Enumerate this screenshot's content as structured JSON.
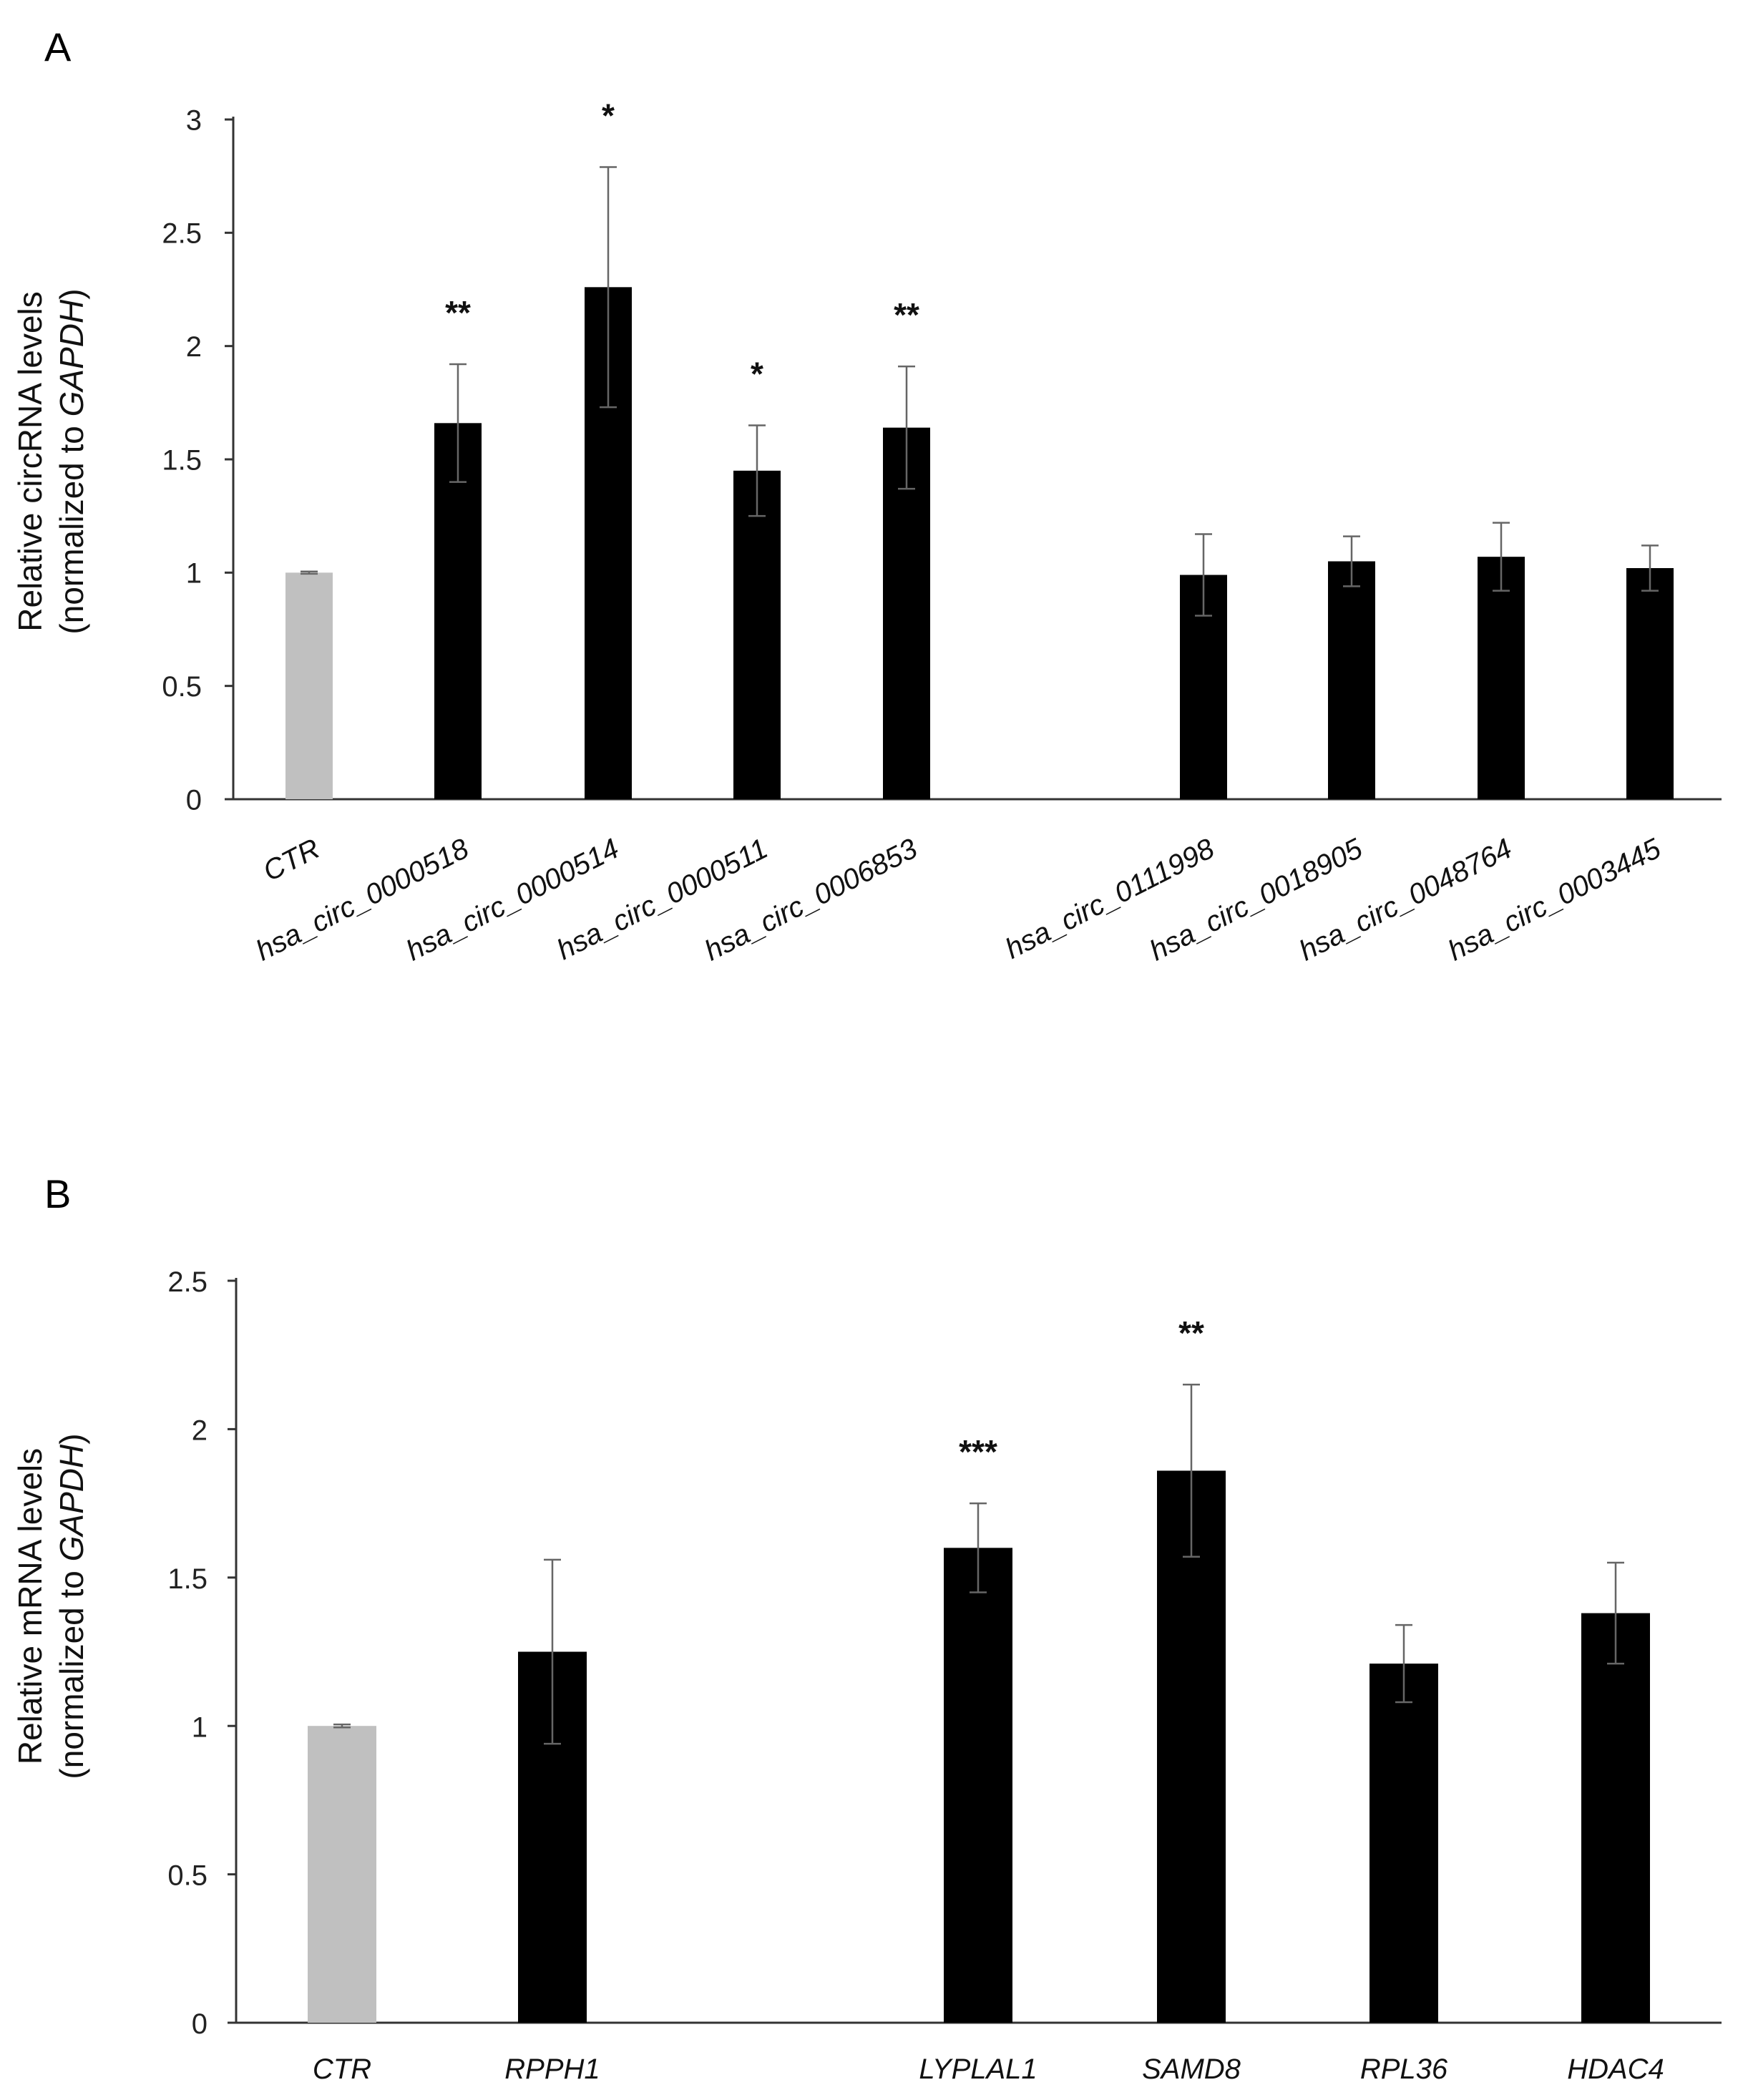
{
  "chart_data": [
    {
      "panel": "A",
      "type": "bar",
      "ylabel_line1": "Relative circRNA levels",
      "ylabel_line2_prefix": "(normalized to ",
      "ylabel_line2_gene": "GAPDH",
      "ylabel_line2_suffix": ")",
      "ylim": [
        0,
        3
      ],
      "yticks": [
        "0",
        "0.5",
        "1",
        "1.5",
        "2",
        "2.5",
        "3"
      ],
      "ytick_values": [
        0,
        0.5,
        1,
        1.5,
        2,
        2.5,
        3
      ],
      "categories": [
        "CTR",
        "hsa_circ_0000518",
        "hsa_circ_0000514",
        "hsa_circ_0000511",
        "hsa_circ_0006853",
        "hsa_circ_0111998",
        "hsa_circ_0018905",
        "hsa_circ_0048764",
        "hsa_circ_0003445"
      ],
      "values": [
        1.0,
        1.66,
        2.26,
        1.45,
        1.64,
        0.99,
        1.05,
        1.07,
        1.02
      ],
      "errors": [
        0.005,
        0.26,
        0.53,
        0.2,
        0.27,
        0.18,
        0.11,
        0.15,
        0.1
      ],
      "significance": [
        "",
        "**",
        "*",
        "*",
        "**",
        "",
        "",
        "",
        ""
      ],
      "colors": [
        "#c0c0c0",
        "#000000",
        "#000000",
        "#000000",
        "#000000",
        "#000000",
        "#000000",
        "#000000",
        "#000000"
      ]
    },
    {
      "panel": "B",
      "type": "bar",
      "ylabel_line1": "Relative mRNA levels",
      "ylabel_line2_prefix": "(normalized to ",
      "ylabel_line2_gene": "GAPDH",
      "ylabel_line2_suffix": ")",
      "ylim": [
        0,
        2.5
      ],
      "yticks": [
        "0",
        "0.5",
        "1",
        "1.5",
        "2",
        "2.5"
      ],
      "ytick_values": [
        0,
        0.5,
        1,
        1.5,
        2,
        2.5
      ],
      "categories": [
        "CTR",
        "RPPH1",
        "LYPLAL1",
        "SAMD8",
        "RPL36",
        "HDAC4"
      ],
      "values": [
        1.0,
        1.25,
        1.6,
        1.86,
        1.21,
        1.38
      ],
      "errors": [
        0.005,
        0.31,
        0.15,
        0.29,
        0.13,
        0.17
      ],
      "significance": [
        "",
        "",
        "***",
        "**",
        "",
        ""
      ],
      "colors": [
        "#c0c0c0",
        "#000000",
        "#000000",
        "#000000",
        "#000000",
        "#000000"
      ]
    }
  ]
}
